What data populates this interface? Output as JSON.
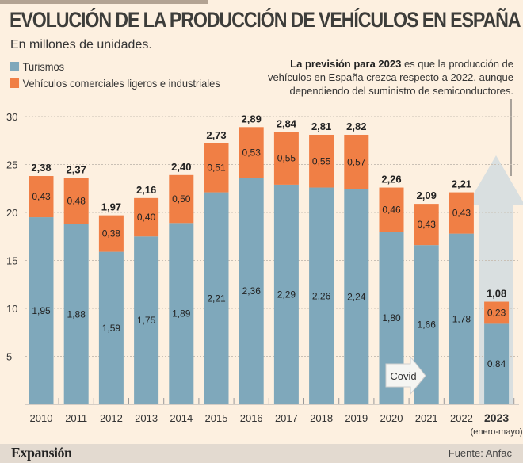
{
  "header": {
    "title": "EVOLUCIÓN DE LA PRODUCCIÓN DE VEHÍCULOS EN ESPAÑA",
    "subtitle": "En millones de unidades."
  },
  "annotation": {
    "bold": "La previsión para 2023",
    "text": " es que la producción de vehículos en España crezca respecto a 2022, aunque dependiendo del suministro de semiconductores."
  },
  "footer": {
    "logo": "Expansión",
    "source": "Fuente: Anfac"
  },
  "colors": {
    "turismos": "#7fa8bb",
    "comerciales": "#f07f45",
    "background": "#fdf0e0"
  },
  "chart_data": {
    "type": "bar",
    "stacked": true,
    "categories": [
      "2010",
      "2011",
      "2012",
      "2013",
      "2014",
      "2015",
      "2016",
      "2017",
      "2018",
      "2019",
      "2020",
      "2021",
      "2022",
      "2023"
    ],
    "category_sublabel": {
      "2023": "(enero-mayo)"
    },
    "series": [
      {
        "name": "Turismos",
        "values": [
          1.95,
          1.88,
          1.59,
          1.75,
          1.89,
          2.21,
          2.36,
          2.29,
          2.26,
          2.24,
          1.8,
          1.66,
          1.78,
          0.84
        ],
        "labels": [
          "1,95",
          "1,88",
          "1,59",
          "1,75",
          "1,89",
          "2,21",
          "2,36",
          "2,29",
          "2,26",
          "2,24",
          "1,80",
          "1,66",
          "1,78",
          "0,84"
        ]
      },
      {
        "name": "Vehículos comerciales ligeros e industriales",
        "values": [
          0.43,
          0.48,
          0.38,
          0.4,
          0.5,
          0.51,
          0.53,
          0.55,
          0.55,
          0.57,
          0.46,
          0.43,
          0.43,
          0.23
        ],
        "labels": [
          "0,43",
          "0,48",
          "0,38",
          "0,40",
          "0,50",
          "0,51",
          "0,53",
          "0,55",
          "0,55",
          "0,57",
          "0,46",
          "0,43",
          "0,43",
          "0,23"
        ]
      }
    ],
    "totals": [
      "2,38",
      "2,37",
      "1,97",
      "2,16",
      "2,40",
      "2,73",
      "2,89",
      "2,84",
      "2,81",
      "2,82",
      "2,26",
      "2,09",
      "2,21",
      "1,08"
    ],
    "yticks": [
      "5",
      "10",
      "15",
      "20",
      "25",
      "30"
    ],
    "ylim": [
      0,
      3.0
    ],
    "grid": true,
    "legend": "top-left",
    "annotations": [
      {
        "text": "Covid",
        "at": "2020-2021"
      }
    ]
  }
}
